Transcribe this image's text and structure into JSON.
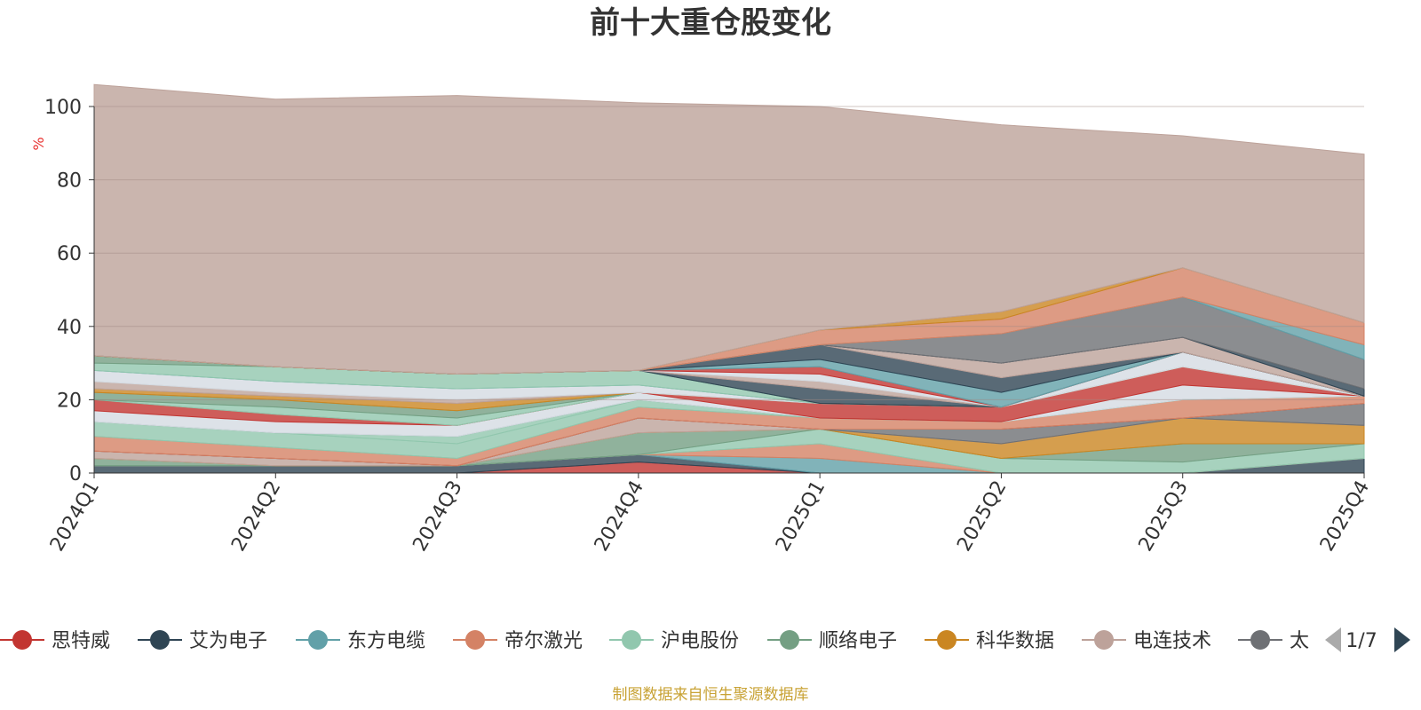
{
  "chart_data": {
    "type": "area",
    "title": "前十大重仓股变化",
    "ylabel": "%",
    "ylim": [
      0,
      100
    ],
    "yticks": [
      "0",
      "20",
      "40",
      "60",
      "80",
      "100"
    ],
    "categories": [
      "2024Q1",
      "2024Q2",
      "2024Q3",
      "2024Q4",
      "2025Q1",
      "2025Q2",
      "2025Q3",
      "2025Q4"
    ],
    "grid": true,
    "stacked": true,
    "legend_position": "bottom",
    "series": [
      {
        "name": "思特威",
        "color": "#c23531",
        "values": [
          0,
          0,
          0,
          3,
          0,
          0,
          0,
          0
        ]
      },
      {
        "name": "艾为电子",
        "color": "#2f4554",
        "values": [
          2,
          2,
          2,
          2,
          0,
          0,
          0,
          4
        ]
      },
      {
        "name": "东方电缆",
        "color": "#61a0a8",
        "values": [
          0,
          0,
          0,
          0,
          4,
          0,
          0,
          0
        ]
      },
      {
        "name": "帝尔激光",
        "color": "#d48265",
        "values": [
          0,
          0,
          0,
          0,
          4,
          0,
          0,
          0
        ]
      },
      {
        "name": "沪电股份",
        "color": "#91c7ae",
        "values": [
          0,
          0,
          0,
          0,
          4,
          4,
          3,
          4
        ]
      },
      {
        "name": "顺络电子",
        "color": "#749f83",
        "values": [
          2,
          0,
          0,
          6,
          0,
          0,
          5,
          0
        ]
      },
      {
        "name": "科华数据",
        "color": "#ca8622",
        "values": [
          0,
          0,
          0,
          0,
          0,
          4,
          7,
          5
        ]
      },
      {
        "name": "电连技术",
        "color": "#bda29a",
        "values": [
          2,
          2,
          0,
          4,
          0,
          0,
          0,
          0
        ]
      },
      {
        "name": "太",
        "color": "#6e7074",
        "values": [
          0,
          0,
          0,
          0,
          0,
          4,
          0,
          6
        ]
      },
      {
        "name": "",
        "color": "#c23531",
        "values": [
          0,
          0,
          0,
          0,
          0,
          0,
          0,
          0
        ]
      },
      {
        "name": "",
        "color": "#d48265",
        "values": [
          4,
          3,
          2,
          3,
          3,
          2,
          5,
          2
        ]
      },
      {
        "name": "",
        "color": "#91c7ae",
        "values": [
          4,
          4,
          4,
          2,
          0,
          0,
          0,
          0
        ]
      },
      {
        "name": "",
        "color": "#91c7ae",
        "values": [
          0,
          0,
          2,
          0,
          0,
          0,
          0,
          0
        ]
      },
      {
        "name": "",
        "color": "#749f83",
        "values": [
          0,
          0,
          0,
          0,
          0,
          0,
          0,
          0
        ]
      },
      {
        "name": "",
        "color": "#d4dbe2",
        "values": [
          3,
          3,
          3,
          2,
          0,
          0,
          4,
          0
        ]
      },
      {
        "name": "",
        "color": "#c23531",
        "values": [
          3,
          2,
          0,
          0,
          4,
          4,
          5,
          0
        ]
      },
      {
        "name": "",
        "color": "#91c7ae",
        "values": [
          0,
          2,
          2,
          0,
          0,
          0,
          0,
          0
        ]
      },
      {
        "name": "",
        "color": "#749f83",
        "values": [
          2,
          2,
          2,
          0,
          0,
          0,
          0,
          0
        ]
      },
      {
        "name": "",
        "color": "#ca8622",
        "values": [
          1,
          1,
          2,
          0,
          0,
          0,
          0,
          0
        ]
      },
      {
        "name": "",
        "color": "#bda29a",
        "values": [
          2,
          1,
          1,
          0,
          0,
          0,
          0,
          0
        ]
      },
      {
        "name": "",
        "color": "#d4dbe2",
        "values": [
          3,
          3,
          3,
          2,
          0,
          0,
          4,
          0
        ]
      },
      {
        "name": "",
        "color": "#61a0a8",
        "values": [
          0,
          0,
          0,
          0,
          0,
          0,
          0,
          0
        ]
      },
      {
        "name": "",
        "color": "#91c7ae",
        "values": [
          2,
          4,
          4,
          4,
          0,
          0,
          0,
          0
        ]
      },
      {
        "name": "",
        "color": "#749f83",
        "values": [
          2,
          0,
          0,
          0,
          0,
          0,
          0,
          0
        ]
      },
      {
        "name": "",
        "color": "#2f4554",
        "values": [
          0,
          0,
          0,
          0,
          4,
          0,
          0,
          0
        ]
      },
      {
        "name": "",
        "color": "#bda29a",
        "values": [
          0,
          0,
          0,
          0,
          2,
          0,
          0,
          0
        ]
      },
      {
        "name": "",
        "color": "#d4dbe2",
        "values": [
          0,
          0,
          0,
          0,
          2,
          0,
          0,
          0
        ]
      },
      {
        "name": "",
        "color": "#c23531",
        "values": [
          0,
          0,
          0,
          0,
          2,
          0,
          0,
          0
        ]
      },
      {
        "name": "",
        "color": "#61a0a8",
        "values": [
          0,
          0,
          0,
          0,
          2,
          4,
          0,
          0
        ]
      },
      {
        "name": "",
        "color": "#2f4554",
        "values": [
          0,
          0,
          0,
          0,
          4,
          4,
          0,
          0
        ]
      },
      {
        "name": "",
        "color": "#bda29a",
        "values": [
          0,
          0,
          0,
          0,
          0,
          4,
          4,
          0
        ]
      },
      {
        "name": "",
        "color": "#2f4554",
        "values": [
          0,
          0,
          0,
          0,
          0,
          0,
          0,
          2
        ]
      },
      {
        "name": "",
        "color": "#6e7074",
        "values": [
          0,
          0,
          0,
          0,
          0,
          8,
          11,
          8
        ]
      },
      {
        "name": "",
        "color": "#61a0a8",
        "values": [
          0,
          0,
          0,
          0,
          0,
          0,
          0,
          4
        ]
      },
      {
        "name": "",
        "color": "#d48265",
        "values": [
          0,
          0,
          0,
          0,
          4,
          4,
          8,
          6
        ]
      },
      {
        "name": "",
        "color": "#ca8622",
        "values": [
          0,
          0,
          0,
          0,
          0,
          2,
          0,
          0
        ]
      },
      {
        "name": "",
        "color": "#bda29a",
        "values": [
          74,
          73,
          76,
          73,
          61,
          51,
          36,
          46
        ]
      }
    ]
  },
  "legend": {
    "items": [
      {
        "name": "思特威",
        "color": "#c23531"
      },
      {
        "name": "艾为电子",
        "color": "#2f4554"
      },
      {
        "name": "东方电缆",
        "color": "#61a0a8"
      },
      {
        "name": "帝尔激光",
        "color": "#d48265"
      },
      {
        "name": "沪电股份",
        "color": "#91c7ae"
      },
      {
        "name": "顺络电子",
        "color": "#749f83"
      },
      {
        "name": "科华数据",
        "color": "#ca8622"
      },
      {
        "name": "电连技术",
        "color": "#bda29a"
      },
      {
        "name": "太",
        "color": "#6e7074"
      }
    ],
    "page": "1/7"
  },
  "source_note": "制图数据来自恒生聚源数据库",
  "icons": {
    "prev": "triangle-left-icon",
    "next": "triangle-right-icon"
  }
}
